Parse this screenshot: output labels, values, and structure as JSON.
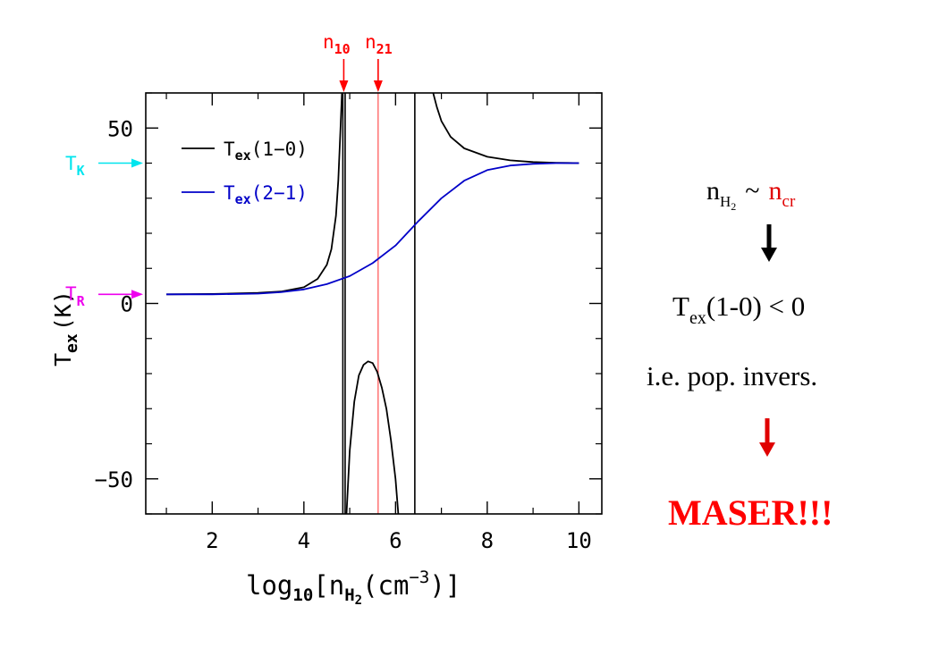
{
  "chart_data": {
    "type": "line",
    "title": "",
    "xlabel": {
      "base": "log",
      "base_sub": "10",
      "open": "[n",
      "n_sub": "H",
      "n_sub_sub": "2",
      "unit": "(cm",
      "exp": "−3",
      "close": ")]"
    },
    "ylabel": {
      "main": "T",
      "sub": "ex",
      "unit": "(K)"
    },
    "xlim": [
      0.55,
      10.5
    ],
    "ylim": [
      -60,
      60
    ],
    "x_scale": "linear",
    "x_ticks": [
      2,
      4,
      6,
      8,
      10
    ],
    "x_tick_labels": [
      "2",
      "4",
      "6",
      "8",
      "10"
    ],
    "y_ticks": [
      -50,
      0,
      50
    ],
    "y_tick_labels": [
      "−50",
      "0",
      "50"
    ],
    "legend": {
      "placement": "top-left",
      "entries": [
        {
          "main": "T",
          "sub": "ex",
          "rest": "(1−0)",
          "color": "#000000"
        },
        {
          "main": "T",
          "sub": "ex",
          "rest": "(2−1)",
          "color": "#0000c8"
        }
      ]
    },
    "series": [
      {
        "color": "#000000",
        "segments": [
          {
            "x": [
              1.0,
              2.0,
              3.0,
              3.5,
              4.0,
              4.3,
              4.5,
              4.6,
              4.7,
              4.75,
              4.8,
              4.83
            ],
            "y": [
              2.6,
              2.7,
              3.0,
              3.4,
              4.6,
              7.0,
              11.0,
              15.5,
              25.0,
              35.0,
              50.0,
              60.0
            ]
          },
          {
            "x": [
              4.93,
              5.0,
              5.1,
              5.2,
              5.3,
              5.4,
              5.5,
              5.6,
              5.7,
              5.8,
              5.9,
              6.0,
              6.06
            ],
            "y": [
              -60.0,
              -42.0,
              -28.0,
              -20.5,
              -17.5,
              -16.5,
              -17.0,
              -19.5,
              -24.0,
              -30.0,
              -39.0,
              -50.0,
              -60.0
            ]
          },
          {
            "x": [
              6.82,
              6.9,
              7.0,
              7.2,
              7.5,
              8.0,
              8.5,
              9.0,
              9.5,
              10.0
            ],
            "y": [
              60.0,
              56.0,
              52.0,
              47.5,
              44.2,
              41.8,
              40.8,
              40.3,
              40.1,
              40.0
            ]
          }
        ]
      },
      {
        "color": "#0000c8",
        "segments": [
          {
            "x": [
              1.0,
              2.0,
              3.0,
              3.5,
              4.0,
              4.5,
              5.0,
              5.5,
              6.0,
              6.5,
              7.0,
              7.5,
              8.0,
              8.5,
              9.0,
              9.5,
              10.0
            ],
            "y": [
              2.6,
              2.6,
              2.8,
              3.2,
              4.0,
              5.5,
              7.8,
              11.5,
              16.5,
              23.5,
              30.0,
              35.0,
              38.0,
              39.3,
              39.8,
              40.0,
              40.0
            ]
          }
        ]
      }
    ],
    "vertical_lines": [
      {
        "x": 4.85,
        "color": "#000000"
      },
      {
        "x": 4.9,
        "color": "#000000"
      },
      {
        "x": 6.42,
        "color": "#000000"
      },
      {
        "x": 5.62,
        "color": "#ff4040"
      }
    ],
    "top_markers": [
      {
        "x": 4.87,
        "main": "n",
        "sub": "10",
        "color": "#ff0000"
      },
      {
        "x": 5.62,
        "main": "n",
        "sub": "21",
        "color": "#ff0000"
      }
    ],
    "left_markers": [
      {
        "y": 40,
        "main": "T",
        "sub": "K",
        "color": "#00e5ee"
      },
      {
        "y": 2.6,
        "main": "T",
        "sub": "R",
        "color": "#ee00ee"
      }
    ],
    "annotations": {
      "condition": {
        "n": "n",
        "n_sub": "H",
        "n_sub_sub": "2",
        "tilde": "~",
        "ncr": "n",
        "ncr_sub": "cr"
      },
      "tex_line": {
        "main": "T",
        "sub": "ex",
        "rest": "(1-0) < 0"
      },
      "inversion": "i.e. pop. invers.",
      "maser": "MASER!!!"
    }
  }
}
